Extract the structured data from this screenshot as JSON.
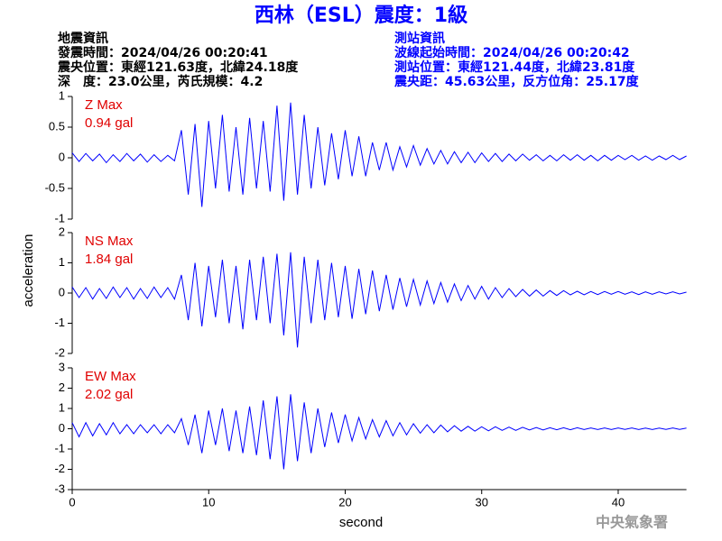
{
  "header": {
    "title": "西林（ESL）震度：1級",
    "left": [
      "地震資訊",
      "發震時間：2024/04/26 00:20:41",
      "震央位置：東經121.63度，北緯24.18度",
      "深　度：23.0公里，芮氏規模：4.2"
    ],
    "right": [
      "測站資訊",
      "波線起始時間：2024/04/26 00:20:42",
      "測站位置：東經121.44度，北緯23.81度",
      "震央距：45.63公里，反方位角：25.17度"
    ]
  },
  "ylabel": "acceleration",
  "watermark": "中央氣象署",
  "chart_data": [
    {
      "type": "line",
      "title": "Z Max",
      "subtitle": "0.94 gal",
      "color": "#0000ff",
      "xlim": [
        0,
        45
      ],
      "ylim": [
        -1,
        1
      ],
      "yticks": [
        1,
        0.5,
        0,
        -0.5,
        -1
      ],
      "x": [
        0,
        0.5,
        1,
        1.5,
        2,
        2.5,
        3,
        3.5,
        4,
        4.5,
        5,
        5.5,
        6,
        6.5,
        7,
        7.5,
        8,
        8.5,
        9,
        9.5,
        10,
        10.5,
        11,
        11.5,
        12,
        12.5,
        13,
        13.5,
        14,
        14.5,
        15,
        15.5,
        16,
        16.5,
        17,
        17.5,
        18,
        18.5,
        19,
        19.5,
        20,
        20.5,
        21,
        21.5,
        22,
        22.5,
        23,
        23.5,
        24,
        24.5,
        25,
        25.5,
        26,
        26.5,
        27,
        27.5,
        28,
        28.5,
        29,
        29.5,
        30,
        30.5,
        31,
        31.5,
        32,
        32.5,
        33,
        33.5,
        34,
        34.5,
        35,
        35.5,
        36,
        36.5,
        37,
        37.5,
        38,
        38.5,
        39,
        39.5,
        40,
        40.5,
        41,
        41.5,
        42,
        42.5,
        43,
        43.5,
        44,
        44.5,
        45
      ],
      "values": [
        0.08,
        -0.06,
        0.07,
        -0.05,
        0.06,
        -0.08,
        0.05,
        -0.06,
        0.07,
        -0.05,
        0.06,
        -0.07,
        0.05,
        -0.06,
        0.04,
        -0.05,
        0.45,
        -0.6,
        0.55,
        -0.8,
        0.6,
        -0.5,
        0.7,
        -0.55,
        0.5,
        -0.6,
        0.65,
        -0.5,
        0.6,
        -0.55,
        0.85,
        -0.7,
        0.9,
        -0.6,
        0.7,
        -0.5,
        0.5,
        -0.45,
        0.4,
        -0.35,
        0.45,
        -0.3,
        0.35,
        -0.3,
        0.25,
        -0.2,
        0.25,
        -0.2,
        0.18,
        -0.15,
        0.2,
        -0.12,
        0.15,
        -0.1,
        0.12,
        -0.1,
        0.1,
        -0.08,
        0.09,
        -0.08,
        0.08,
        -0.06,
        0.07,
        -0.06,
        0.06,
        -0.05,
        0.06,
        -0.04,
        0.05,
        -0.05,
        0.04,
        -0.05,
        0.05,
        -0.04,
        0.05,
        -0.04,
        0.04,
        -0.05,
        0.04,
        -0.04,
        0.04,
        -0.03,
        0.04,
        -0.04,
        0.03,
        -0.04,
        0.03,
        -0.03,
        0.04,
        -0.03,
        0.03
      ]
    },
    {
      "type": "line",
      "title": "NS Max",
      "subtitle": "1.84 gal",
      "color": "#0000ff",
      "xlim": [
        0,
        45
      ],
      "ylim": [
        -2,
        2
      ],
      "yticks": [
        2,
        1,
        0,
        -1,
        -2
      ],
      "x": [
        0,
        0.5,
        1,
        1.5,
        2,
        2.5,
        3,
        3.5,
        4,
        4.5,
        5,
        5.5,
        6,
        6.5,
        7,
        7.5,
        8,
        8.5,
        9,
        9.5,
        10,
        10.5,
        11,
        11.5,
        12,
        12.5,
        13,
        13.5,
        14,
        14.5,
        15,
        15.5,
        16,
        16.5,
        17,
        17.5,
        18,
        18.5,
        19,
        19.5,
        20,
        20.5,
        21,
        21.5,
        22,
        22.5,
        23,
        23.5,
        24,
        24.5,
        25,
        25.5,
        26,
        26.5,
        27,
        27.5,
        28,
        28.5,
        29,
        29.5,
        30,
        30.5,
        31,
        31.5,
        32,
        32.5,
        33,
        33.5,
        34,
        34.5,
        35,
        35.5,
        36,
        36.5,
        37,
        37.5,
        38,
        38.5,
        39,
        39.5,
        40,
        40.5,
        41,
        41.5,
        42,
        42.5,
        43,
        43.5,
        44,
        44.5,
        45
      ],
      "values": [
        0.2,
        -0.15,
        0.18,
        -0.2,
        0.15,
        -0.18,
        0.2,
        -0.15,
        0.18,
        -0.2,
        0.15,
        -0.18,
        0.2,
        -0.15,
        0.18,
        -0.2,
        0.6,
        -0.9,
        1.0,
        -1.1,
        0.9,
        -0.8,
        1.1,
        -1.0,
        0.9,
        -1.2,
        1.1,
        -0.9,
        1.2,
        -1.0,
        1.3,
        -1.4,
        1.35,
        -1.8,
        1.2,
        -1.0,
        1.1,
        -0.9,
        1.0,
        -0.8,
        0.9,
        -0.85,
        0.8,
        -0.7,
        0.75,
        -0.6,
        0.6,
        -0.55,
        0.5,
        -0.45,
        0.45,
        -0.4,
        0.4,
        -0.35,
        0.35,
        -0.3,
        0.3,
        -0.25,
        0.25,
        -0.2,
        0.22,
        -0.2,
        0.18,
        -0.15,
        0.15,
        -0.12,
        0.12,
        -0.1,
        0.1,
        -0.1,
        0.08,
        -0.08,
        0.08,
        -0.06,
        0.06,
        -0.06,
        0.05,
        -0.05,
        0.05,
        -0.04,
        0.05,
        -0.04,
        0.04,
        -0.05,
        0.04,
        -0.04,
        0.04,
        -0.03,
        0.04,
        -0.03,
        0.03
      ]
    },
    {
      "type": "line",
      "title": "EW Max",
      "subtitle": "2.02 gal",
      "color": "#0000ff",
      "xlabel": "second",
      "xlim": [
        0,
        45
      ],
      "xticks": [
        0,
        10,
        20,
        30,
        40
      ],
      "ylim": [
        -3,
        3
      ],
      "yticks": [
        3,
        2,
        1,
        0,
        -1,
        -2,
        -3
      ],
      "x": [
        0,
        0.5,
        1,
        1.5,
        2,
        2.5,
        3,
        3.5,
        4,
        4.5,
        5,
        5.5,
        6,
        6.5,
        7,
        7.5,
        8,
        8.5,
        9,
        9.5,
        10,
        10.5,
        11,
        11.5,
        12,
        12.5,
        13,
        13.5,
        14,
        14.5,
        15,
        15.5,
        16,
        16.5,
        17,
        17.5,
        18,
        18.5,
        19,
        19.5,
        20,
        20.5,
        21,
        21.5,
        22,
        22.5,
        23,
        23.5,
        24,
        24.5,
        25,
        25.5,
        26,
        26.5,
        27,
        27.5,
        28,
        28.5,
        29,
        29.5,
        30,
        30.5,
        31,
        31.5,
        32,
        32.5,
        33,
        33.5,
        34,
        34.5,
        35,
        35.5,
        36,
        36.5,
        37,
        37.5,
        38,
        38.5,
        39,
        39.5,
        40,
        40.5,
        41,
        41.5,
        42,
        42.5,
        43,
        43.5,
        44,
        44.5,
        45
      ],
      "values": [
        0.3,
        -0.4,
        0.3,
        -0.35,
        0.25,
        -0.3,
        0.3,
        -0.25,
        0.2,
        -0.25,
        0.2,
        -0.2,
        0.2,
        -0.25,
        0.2,
        -0.2,
        0.5,
        -0.8,
        0.7,
        -1.2,
        0.9,
        -0.8,
        1.0,
        -1.1,
        0.9,
        -1.2,
        1.1,
        -1.3,
        1.4,
        -1.5,
        1.6,
        -2.0,
        1.7,
        -1.6,
        1.3,
        -1.2,
        1.0,
        -0.9,
        0.8,
        -0.7,
        0.7,
        -0.6,
        0.55,
        -0.5,
        0.45,
        -0.4,
        0.4,
        -0.35,
        0.3,
        -0.3,
        0.25,
        -0.22,
        0.2,
        -0.2,
        0.18,
        -0.15,
        0.15,
        -0.12,
        0.12,
        -0.12,
        0.1,
        -0.1,
        0.1,
        -0.08,
        0.08,
        -0.08,
        0.07,
        -0.06,
        0.06,
        -0.06,
        0.05,
        -0.05,
        0.05,
        -0.05,
        0.05,
        -0.04,
        0.04,
        -0.04,
        0.04,
        -0.04,
        0.04,
        -0.03,
        0.04,
        -0.04,
        0.03,
        -0.04,
        0.03,
        -0.03,
        0.04,
        -0.03,
        0.03
      ]
    }
  ]
}
